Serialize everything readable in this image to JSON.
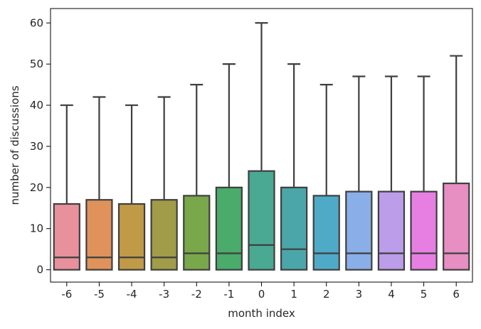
{
  "chart_data": {
    "type": "box",
    "title": "",
    "xlabel": "month index",
    "ylabel": "number of discussions",
    "ylim": [
      -3,
      63.5
    ],
    "yticks": [
      0,
      10,
      20,
      30,
      40,
      50,
      60
    ],
    "grid": false,
    "legend": "none",
    "categories": [
      "-6",
      "-5",
      "-4",
      "-3",
      "-2",
      "-1",
      "0",
      "1",
      "2",
      "3",
      "4",
      "5",
      "6"
    ],
    "boxes": [
      {
        "category": "-6",
        "min": 0,
        "q1": 0,
        "median": 3,
        "q3": 16,
        "max": 40,
        "color": "#e8919c"
      },
      {
        "category": "-5",
        "min": 0,
        "q1": 0,
        "median": 3,
        "q3": 17,
        "max": 42,
        "color": "#e0925b"
      },
      {
        "category": "-4",
        "min": 0,
        "q1": 0,
        "median": 3,
        "q3": 16,
        "max": 40,
        "color": "#c19a48"
      },
      {
        "category": "-3",
        "min": 0,
        "q1": 0,
        "median": 3,
        "q3": 17,
        "max": 42,
        "color": "#a19c48"
      },
      {
        "category": "-2",
        "min": 0,
        "q1": 0,
        "median": 4,
        "q3": 18,
        "max": 45,
        "color": "#79a84b"
      },
      {
        "category": "-1",
        "min": 0,
        "q1": 0,
        "median": 4,
        "q3": 20,
        "max": 50,
        "color": "#4aab6a"
      },
      {
        "category": "0",
        "min": 0,
        "q1": 0,
        "median": 6,
        "q3": 24,
        "max": 60,
        "color": "#4aa993"
      },
      {
        "category": "1",
        "min": 0,
        "q1": 0,
        "median": 5,
        "q3": 20,
        "max": 50,
        "color": "#4ba6aa"
      },
      {
        "category": "2",
        "min": 0,
        "q1": 0,
        "median": 4,
        "q3": 18,
        "max": 45,
        "color": "#4faac7"
      },
      {
        "category": "3",
        "min": 0,
        "q1": 0,
        "median": 4,
        "q3": 19,
        "max": 47,
        "color": "#8aaee8"
      },
      {
        "category": "4",
        "min": 0,
        "q1": 0,
        "median": 4,
        "q3": 19,
        "max": 47,
        "color": "#bc9de9"
      },
      {
        "category": "5",
        "min": 0,
        "q1": 0,
        "median": 4,
        "q3": 19,
        "max": 47,
        "color": "#e77fe3"
      },
      {
        "category": "6",
        "min": 0,
        "q1": 0,
        "median": 4,
        "q3": 21,
        "max": 52,
        "color": "#e78fc2"
      }
    ],
    "line_color": "#3f3f3f"
  }
}
